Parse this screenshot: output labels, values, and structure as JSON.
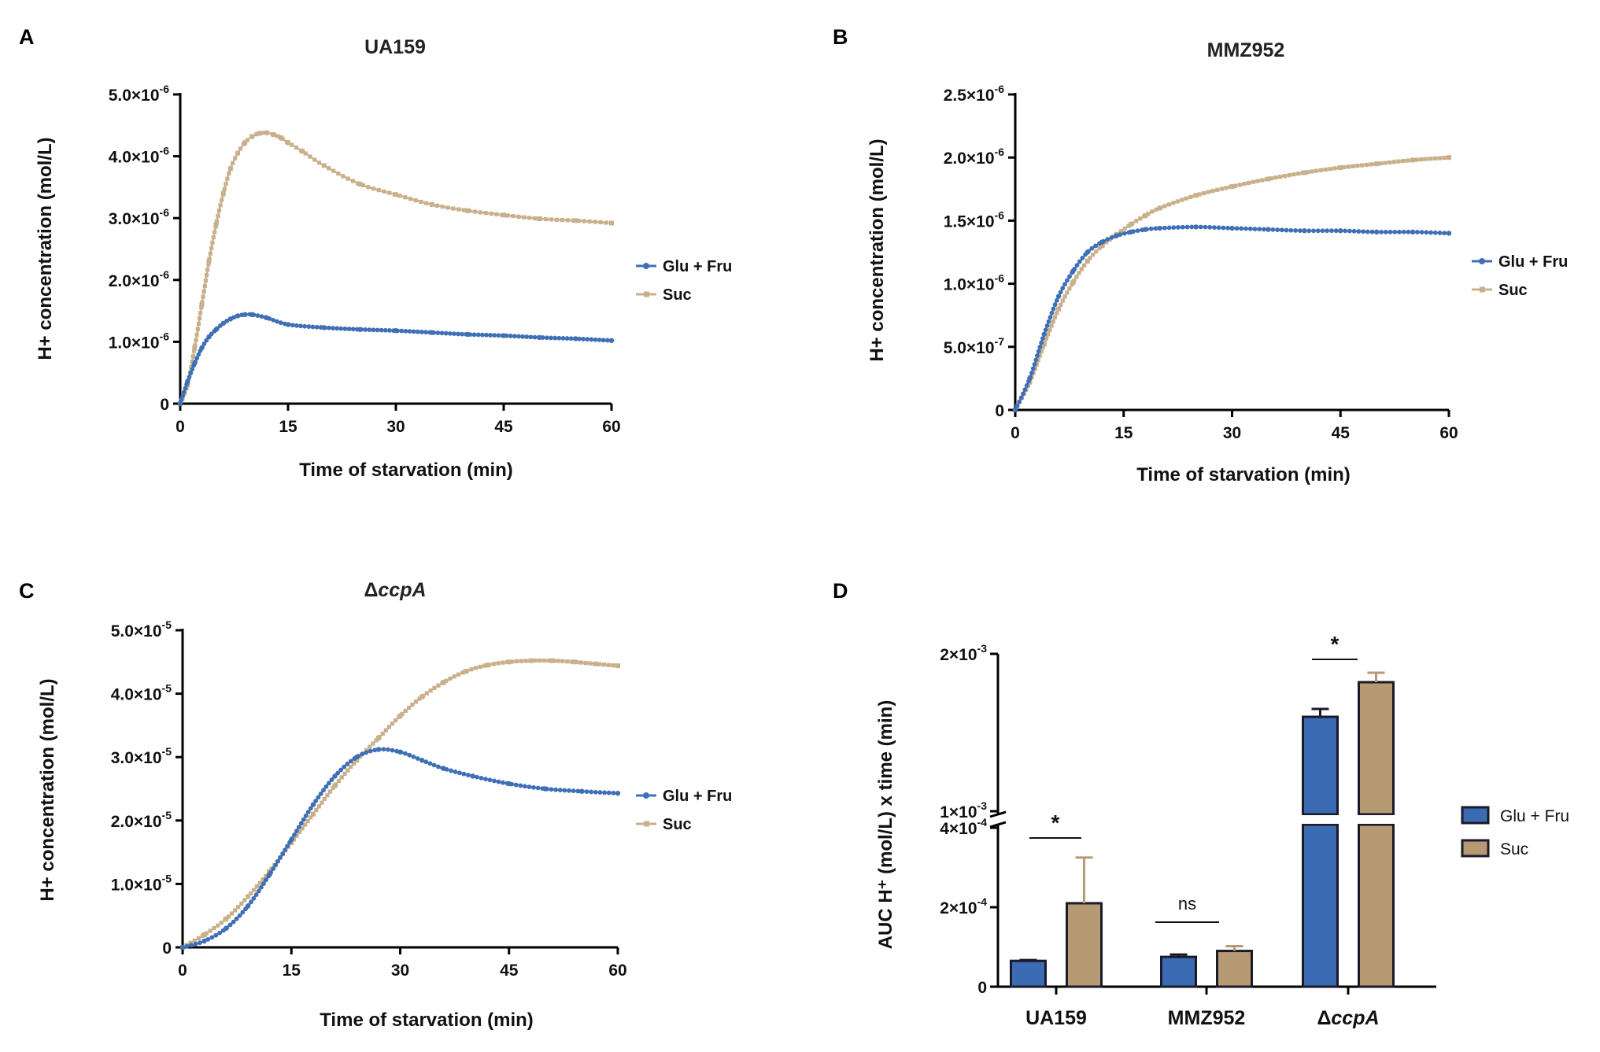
{
  "figure": {
    "panel_labels": [
      "A",
      "B",
      "C",
      "D"
    ]
  },
  "colors": {
    "glu_fru": "#3F6FB5",
    "suc": "#C9B08B",
    "bar_glu_fru": "#3A6BB3",
    "bar_suc": "#B59A74",
    "bar_edge": "#1a1a2a"
  },
  "chart_data": [
    {
      "panel": "A",
      "type": "line",
      "title": "UA159",
      "xlabel": "Time of starvation (min)",
      "ylabel": "H+ concentration (mol/L)",
      "xlim": [
        0,
        60
      ],
      "ylim": [
        0,
        5e-06
      ],
      "xticks": [
        "0",
        "15",
        "30",
        "45",
        "60"
      ],
      "yticks": [
        {
          "v": 0,
          "m": "0",
          "e": ""
        },
        {
          "v": 1e-06,
          "m": "1.0×10",
          "e": "-6"
        },
        {
          "v": 2e-06,
          "m": "2.0×10",
          "e": "-6"
        },
        {
          "v": 3e-06,
          "m": "3.0×10",
          "e": "-6"
        },
        {
          "v": 4e-06,
          "m": "4.0×10",
          "e": "-6"
        },
        {
          "v": 5e-06,
          "m": "5.0×10",
          "e": "-6"
        }
      ],
      "legend_position": "right",
      "series": [
        {
          "name": "Glu + Fru",
          "key": "glu_fru",
          "x": [
            0,
            1,
            2,
            3,
            4,
            5,
            6,
            7,
            8,
            9,
            10,
            12,
            15,
            20,
            25,
            30,
            35,
            40,
            45,
            50,
            55,
            60
          ],
          "y": [
            0.0,
            3.5e-07,
            6.5e-07,
            9e-07,
            1.08e-06,
            1.2e-06,
            1.3e-06,
            1.37e-06,
            1.42e-06,
            1.44e-06,
            1.44e-06,
            1.39e-06,
            1.28e-06,
            1.23e-06,
            1.2e-06,
            1.18e-06,
            1.15e-06,
            1.12e-06,
            1.1e-06,
            1.07e-06,
            1.05e-06,
            1.02e-06
          ]
        },
        {
          "name": "Suc",
          "key": "suc",
          "x": [
            0,
            1,
            2,
            3,
            4,
            5,
            6,
            7,
            8,
            9,
            10,
            11,
            12,
            13,
            14,
            15,
            17,
            20,
            25,
            30,
            35,
            40,
            45,
            50,
            55,
            60
          ],
          "y": [
            0.0,
            3e-07,
            9e-07,
            1.6e-06,
            2.3e-06,
            2.9e-06,
            3.4e-06,
            3.8e-06,
            4.05e-06,
            4.22e-06,
            4.32e-06,
            4.37e-06,
            4.38e-06,
            4.35e-06,
            4.3e-06,
            4.22e-06,
            4.08e-06,
            3.85e-06,
            3.55e-06,
            3.38e-06,
            3.22e-06,
            3.12e-06,
            3.05e-06,
            2.99e-06,
            2.96e-06,
            2.92e-06
          ]
        }
      ]
    },
    {
      "panel": "B",
      "type": "line",
      "title": "MMZ952",
      "xlabel": "Time of starvation (min)",
      "ylabel": "H+ concentration (mol/L)",
      "xlim": [
        0,
        60
      ],
      "ylim": [
        0,
        2.5e-06
      ],
      "xticks": [
        "0",
        "15",
        "30",
        "45",
        "60"
      ],
      "yticks": [
        {
          "v": 0,
          "m": "0",
          "e": ""
        },
        {
          "v": 5e-07,
          "m": "5.0×10",
          "e": "-7"
        },
        {
          "v": 1e-06,
          "m": "1.0×10",
          "e": "-6"
        },
        {
          "v": 1.5e-06,
          "m": "1.5×10",
          "e": "-6"
        },
        {
          "v": 2e-06,
          "m": "2.0×10",
          "e": "-6"
        },
        {
          "v": 2.5e-06,
          "m": "2.5×10",
          "e": "-6"
        }
      ],
      "legend_position": "right",
      "series": [
        {
          "name": "Glu + Fru",
          "key": "glu_fru",
          "x": [
            0,
            2,
            4,
            6,
            8,
            10,
            12,
            14,
            16,
            18,
            20,
            25,
            30,
            35,
            40,
            45,
            50,
            55,
            60
          ],
          "y": [
            0.0,
            2.5e-07,
            6e-07,
            9e-07,
            1.1e-06,
            1.25e-06,
            1.33e-06,
            1.38e-06,
            1.41e-06,
            1.43e-06,
            1.44e-06,
            1.45e-06,
            1.44e-06,
            1.43e-06,
            1.42e-06,
            1.42e-06,
            1.41e-06,
            1.41e-06,
            1.4e-06
          ]
        },
        {
          "name": "Suc",
          "key": "suc",
          "x": [
            0,
            2,
            4,
            6,
            8,
            10,
            12,
            14,
            16,
            18,
            20,
            25,
            30,
            35,
            40,
            45,
            50,
            55,
            60
          ],
          "y": [
            0.0,
            2.2e-07,
            5.2e-07,
            8e-07,
            1.01e-06,
            1.18e-06,
            1.3e-06,
            1.39e-06,
            1.47e-06,
            1.54e-06,
            1.6e-06,
            1.7e-06,
            1.77e-06,
            1.83e-06,
            1.88e-06,
            1.92e-06,
            1.95e-06,
            1.98e-06,
            2e-06
          ]
        }
      ]
    },
    {
      "panel": "C",
      "type": "line",
      "title": "Δ",
      "title_italic": "ccpA",
      "xlabel": "Time of starvation (min)",
      "ylabel": "H+ concentration (mol/L)",
      "xlim": [
        0,
        60
      ],
      "ylim": [
        0,
        5e-05
      ],
      "xticks": [
        "0",
        "15",
        "30",
        "45",
        "60"
      ],
      "yticks": [
        {
          "v": 0,
          "m": "0",
          "e": ""
        },
        {
          "v": 1e-05,
          "m": "1.0×10",
          "e": "-5"
        },
        {
          "v": 2e-05,
          "m": "2.0×10",
          "e": "-5"
        },
        {
          "v": 3e-05,
          "m": "3.0×10",
          "e": "-5"
        },
        {
          "v": 4e-05,
          "m": "4.0×10",
          "e": "-5"
        },
        {
          "v": 5e-05,
          "m": "5.0×10",
          "e": "-5"
        }
      ],
      "legend_position": "right",
      "series": [
        {
          "name": "Glu + Fru",
          "key": "glu_fru",
          "x": [
            0,
            3,
            6,
            9,
            12,
            15,
            18,
            21,
            24,
            27,
            30,
            33,
            36,
            40,
            45,
            50,
            55,
            60
          ],
          "y": [
            0.0,
            1e-06,
            3e-06,
            6.5e-06,
            1.15e-05,
            1.7e-05,
            2.25e-05,
            2.7e-05,
            3e-05,
            3.12e-05,
            3.08e-05,
            2.95e-05,
            2.82e-05,
            2.7e-05,
            2.58e-05,
            2.5e-05,
            2.46e-05,
            2.43e-05
          ]
        },
        {
          "name": "Suc",
          "key": "suc",
          "x": [
            0,
            3,
            6,
            9,
            12,
            15,
            18,
            21,
            24,
            27,
            30,
            33,
            36,
            39,
            42,
            45,
            48,
            51,
            54,
            57,
            60
          ],
          "y": [
            0.0,
            2e-06,
            4.5e-06,
            8e-06,
            1.2e-05,
            1.65e-05,
            2.1e-05,
            2.55e-05,
            2.95e-05,
            3.3e-05,
            3.65e-05,
            3.95e-05,
            4.18e-05,
            4.35e-05,
            4.45e-05,
            4.5e-05,
            4.52e-05,
            4.52e-05,
            4.5e-05,
            4.47e-05,
            4.44e-05
          ]
        }
      ]
    },
    {
      "panel": "D",
      "type": "bar",
      "ylabel": "AUC H⁺ (mol/L) x time (min)",
      "categories": [
        "UA159",
        "MMZ952",
        "ΔccpA"
      ],
      "category_labels": [
        {
          "pre": "",
          "it": "",
          "post": "UA159"
        },
        {
          "pre": "",
          "it": "",
          "post": "MMZ952"
        },
        {
          "pre": "Δ",
          "it": "ccpA",
          "post": ""
        }
      ],
      "y_axis_broken": true,
      "ylim_lower": [
        0,
        0.0004
      ],
      "ylim_upper": [
        0.001,
        0.002
      ],
      "yticks": [
        {
          "v": 0,
          "m": "0",
          "e": "",
          "seg": "lower"
        },
        {
          "v": 0.0002,
          "m": "2×10",
          "e": "-4",
          "seg": "lower"
        },
        {
          "v": 0.0004,
          "m": "4×10",
          "e": "-4",
          "seg": "lower"
        },
        {
          "v": 0.001,
          "m": "1×10",
          "e": "-3",
          "seg": "upper"
        },
        {
          "v": 0.002,
          "m": "2×10",
          "e": "-3",
          "seg": "upper"
        }
      ],
      "legend_position": "right",
      "series": [
        {
          "name": "Glu + Fru",
          "key": "bar_glu_fru",
          "values": [
            6.5e-05,
            7.5e-05,
            0.0016
          ],
          "errors": [
            2e-06,
            6e-06,
            5e-05
          ]
        },
        {
          "name": "Suc",
          "key": "bar_suc",
          "values": [
            0.00021,
            9e-05,
            0.00182
          ],
          "errors": [
            0.000115,
            1.2e-05,
            6e-05
          ]
        }
      ],
      "significance": [
        {
          "category": 0,
          "label": "*"
        },
        {
          "category": 1,
          "label": "ns"
        },
        {
          "category": 2,
          "label": "*"
        }
      ]
    }
  ]
}
